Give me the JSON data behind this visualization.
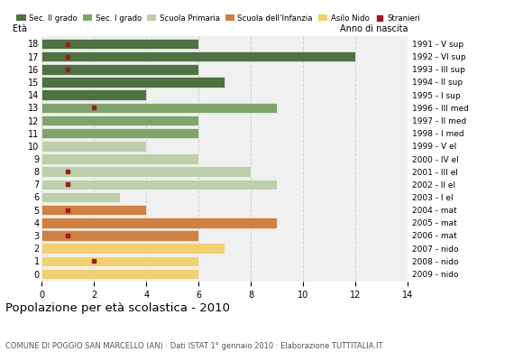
{
  "ages": [
    18,
    17,
    16,
    15,
    14,
    13,
    12,
    11,
    10,
    9,
    8,
    7,
    6,
    5,
    4,
    3,
    2,
    1,
    0
  ],
  "years": [
    "1991 - V sup",
    "1992 - VI sup",
    "1993 - III sup",
    "1994 - II sup",
    "1995 - I sup",
    "1996 - III med",
    "1997 - II med",
    "1998 - I med",
    "1999 - V el",
    "2000 - IV el",
    "2001 - III el",
    "2002 - II el",
    "2003 - I el",
    "2004 - mat",
    "2005 - mat",
    "2006 - mat",
    "2007 - nido",
    "2008 - nido",
    "2009 - nido"
  ],
  "values": [
    6,
    12,
    6,
    7,
    4,
    9,
    6,
    6,
    4,
    6,
    8,
    9,
    3,
    4,
    9,
    6,
    7,
    6,
    6
  ],
  "school_colors": [
    "#4e7242",
    "#4e7242",
    "#4e7242",
    "#4e7242",
    "#4e7242",
    "#7fa46a",
    "#7fa46a",
    "#7fa46a",
    "#bccfaa",
    "#bccfaa",
    "#bccfaa",
    "#bccfaa",
    "#bccfaa",
    "#d08040",
    "#d08040",
    "#d08040",
    "#f0d070",
    "#f0d070",
    "#f0d070"
  ],
  "stranieri_x": [
    1,
    1,
    1,
    0,
    0,
    2,
    0,
    0,
    0,
    0,
    1,
    1,
    0,
    1,
    0,
    1,
    0,
    2,
    0
  ],
  "stranieri_color": "#9b1c1c",
  "xlim": [
    0,
    14
  ],
  "xticks": [
    0,
    2,
    4,
    6,
    8,
    10,
    12,
    14
  ],
  "grid_color": "#cccccc",
  "bg_color": "#f0f0f0",
  "title": "Popolazione per età scolastica - 2010",
  "subtitle": "COMUNE DI POGGIO SAN MARCELLO (AN) · Dati ISTAT 1° gennaio 2010 · Elaborazione TUTTITALIA.IT",
  "legend_labels": [
    "Sec. II grado",
    "Sec. I grado",
    "Scuola Primaria",
    "Scuola dell'Infanzia",
    "Asilo Nido",
    "Stranieri"
  ],
  "legend_colors": [
    "#4e7242",
    "#7fa46a",
    "#bccfaa",
    "#d08040",
    "#f0d070",
    "#9b1c1c"
  ],
  "eta_label": "Età",
  "anno_label": "Anno di nascita"
}
